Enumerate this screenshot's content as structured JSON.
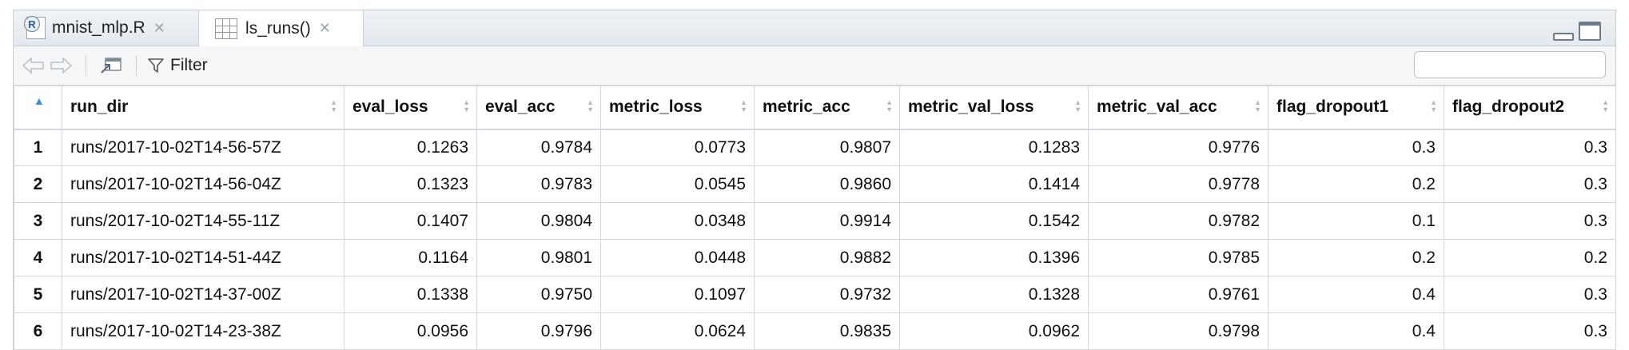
{
  "tabs": [
    {
      "label": "mnist_mlp.R",
      "icon": "r-file-icon"
    },
    {
      "label": "ls_runs()",
      "icon": "data-grid-icon"
    }
  ],
  "toolbar": {
    "filter_label": "Filter",
    "search_placeholder": ""
  },
  "table": {
    "columns": [
      "run_dir",
      "eval_loss",
      "eval_acc",
      "metric_loss",
      "metric_acc",
      "metric_val_loss",
      "metric_val_acc",
      "flag_dropout1",
      "flag_dropout2"
    ],
    "rows": [
      {
        "idx": "1",
        "cells": [
          "runs/2017-10-02T14-56-57Z",
          "0.1263",
          "0.9784",
          "0.0773",
          "0.9807",
          "0.1283",
          "0.9776",
          "0.3",
          "0.3"
        ]
      },
      {
        "idx": "2",
        "cells": [
          "runs/2017-10-02T14-56-04Z",
          "0.1323",
          "0.9783",
          "0.0545",
          "0.9860",
          "0.1414",
          "0.9778",
          "0.2",
          "0.3"
        ]
      },
      {
        "idx": "3",
        "cells": [
          "runs/2017-10-02T14-55-11Z",
          "0.1407",
          "0.9804",
          "0.0348",
          "0.9914",
          "0.1542",
          "0.9782",
          "0.1",
          "0.3"
        ]
      },
      {
        "idx": "4",
        "cells": [
          "runs/2017-10-02T14-51-44Z",
          "0.1164",
          "0.9801",
          "0.0448",
          "0.9882",
          "0.1396",
          "0.9785",
          "0.2",
          "0.2"
        ]
      },
      {
        "idx": "5",
        "cells": [
          "runs/2017-10-02T14-37-00Z",
          "0.1338",
          "0.9750",
          "0.1097",
          "0.9732",
          "0.1328",
          "0.9761",
          "0.4",
          "0.3"
        ]
      },
      {
        "idx": "6",
        "cells": [
          "runs/2017-10-02T14-23-38Z",
          "0.0956",
          "0.9796",
          "0.0624",
          "0.9835",
          "0.0962",
          "0.9798",
          "0.4",
          "0.3"
        ]
      }
    ]
  },
  "colors": {
    "sort_active": "#3b8bd8",
    "border": "#d3d8de"
  }
}
